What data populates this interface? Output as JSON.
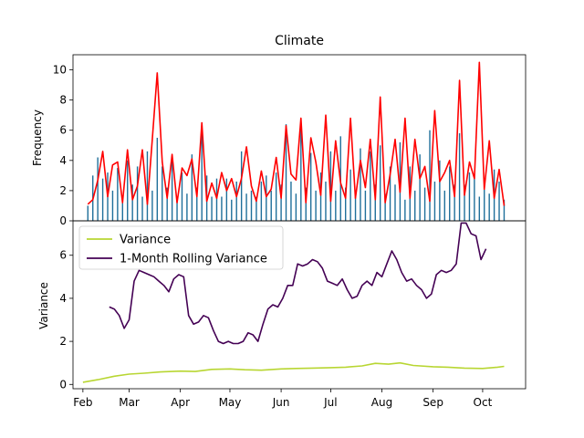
{
  "chart_data": [
    {
      "type": "bar+line",
      "title": "Climate",
      "xlabel": "",
      "ylabel": "Frequency",
      "ylim": [
        0,
        11
      ],
      "yticks": [
        0,
        2,
        4,
        6,
        8,
        10
      ],
      "grid": false,
      "bar_color": "#1f6f9a",
      "line_color": "#ff0000",
      "x": [
        "2023-02-04",
        "2023-02-07",
        "2023-02-10",
        "2023-02-13",
        "2023-02-16",
        "2023-02-19",
        "2023-02-22",
        "2023-02-25",
        "2023-02-28",
        "2023-03-03",
        "2023-03-06",
        "2023-03-09",
        "2023-03-12",
        "2023-03-15",
        "2023-03-18",
        "2023-03-21",
        "2023-03-24",
        "2023-03-27",
        "2023-03-30",
        "2023-04-02",
        "2023-04-05",
        "2023-04-08",
        "2023-04-11",
        "2023-04-14",
        "2023-04-17",
        "2023-04-20",
        "2023-04-23",
        "2023-04-26",
        "2023-04-29",
        "2023-05-02",
        "2023-05-05",
        "2023-05-08",
        "2023-05-11",
        "2023-05-14",
        "2023-05-17",
        "2023-05-20",
        "2023-05-23",
        "2023-05-26",
        "2023-05-29",
        "2023-06-01",
        "2023-06-04",
        "2023-06-07",
        "2023-06-10",
        "2023-06-13",
        "2023-06-16",
        "2023-06-19",
        "2023-06-22",
        "2023-06-25",
        "2023-06-28",
        "2023-07-01",
        "2023-07-04",
        "2023-07-07",
        "2023-07-10",
        "2023-07-13",
        "2023-07-16",
        "2023-07-19",
        "2023-07-22",
        "2023-07-25",
        "2023-07-28",
        "2023-07-31",
        "2023-08-03",
        "2023-08-06",
        "2023-08-09",
        "2023-08-12",
        "2023-08-15",
        "2023-08-18",
        "2023-08-21",
        "2023-08-24",
        "2023-08-27",
        "2023-08-30",
        "2023-09-02",
        "2023-09-05",
        "2023-09-08",
        "2023-09-11",
        "2023-09-14",
        "2023-09-17",
        "2023-09-20",
        "2023-09-23",
        "2023-09-26",
        "2023-09-29",
        "2023-10-02",
        "2023-10-05",
        "2023-10-08",
        "2023-10-11",
        "2023-10-14"
      ],
      "series": [
        {
          "kind": "bar",
          "values": [
            1.0,
            3.0,
            4.2,
            2.8,
            3.2,
            2.0,
            3.5,
            1.2,
            4.0,
            2.4,
            3.6,
            1.6,
            4.6,
            2.0,
            5.5,
            3.6,
            2.2,
            4.0,
            1.4,
            3.2,
            1.8,
            4.4,
            2.2,
            6.0,
            3.0,
            1.6,
            2.8,
            1.6,
            2.8,
            1.4,
            2.6,
            4.6,
            1.8,
            2.0,
            1.6,
            2.6,
            3.0,
            2.0,
            3.2,
            2.4,
            6.4,
            2.6,
            1.8,
            6.5,
            2.2,
            4.5,
            2.0,
            3.2,
            2.6,
            4.6,
            2.0,
            5.6,
            2.2,
            3.4,
            1.6,
            4.8,
            2.0,
            4.6,
            2.4,
            5.0,
            1.8,
            3.6,
            2.4,
            5.2,
            1.4,
            3.6,
            2.0,
            4.4,
            2.2,
            6.0,
            2.6,
            4.0,
            2.0,
            3.6,
            2.4,
            5.8,
            2.4,
            3.2,
            3.0,
            1.6,
            2.8,
            1.8,
            3.4,
            2.6,
            1.4
          ]
        },
        {
          "kind": "line",
          "values": [
            1.1,
            1.4,
            2.7,
            4.6,
            1.6,
            3.7,
            3.9,
            1.2,
            4.7,
            1.4,
            2.3,
            4.7,
            1.1,
            5.4,
            9.8,
            3.9,
            1.5,
            4.4,
            1.2,
            3.5,
            3.0,
            4.1,
            1.6,
            6.5,
            1.3,
            2.5,
            1.5,
            3.2,
            2.0,
            2.8,
            1.6,
            2.8,
            4.9,
            2.3,
            1.3,
            3.3,
            1.6,
            2.1,
            4.2,
            1.5,
            6.3,
            3.1,
            2.7,
            6.8,
            1.2,
            5.5,
            3.9,
            1.7,
            7.0,
            1.3,
            5.3,
            2.5,
            1.5,
            6.8,
            1.5,
            4.0,
            2.2,
            5.4,
            1.4,
            8.2,
            1.2,
            3.1,
            5.4,
            1.9,
            6.8,
            1.5,
            5.4,
            2.8,
            3.6,
            1.3,
            7.3,
            2.6,
            3.2,
            4.0,
            1.6,
            9.3,
            1.7,
            3.9,
            2.8,
            10.5,
            2.1,
            5.3,
            1.5,
            3.4,
            1.0
          ]
        }
      ]
    },
    {
      "type": "line",
      "title": "",
      "xlabel": "",
      "ylabel": "Variance",
      "ylim": [
        -0.2,
        7.6
      ],
      "yticks": [
        0,
        2,
        4,
        6
      ],
      "xticks": [
        "Feb",
        "Mar",
        "Apr",
        "May",
        "Jun",
        "Jul",
        "Aug",
        "Sep",
        "Oct"
      ],
      "xrange": [
        "2023-01-26",
        "2023-10-27"
      ],
      "grid": false,
      "legend": "upper-left",
      "series": [
        {
          "name": "Variance",
          "color": "#b8d632",
          "x": [
            "2023-02-01",
            "2023-02-10",
            "2023-02-20",
            "2023-03-01",
            "2023-03-10",
            "2023-03-20",
            "2023-04-01",
            "2023-04-10",
            "2023-04-20",
            "2023-05-01",
            "2023-05-10",
            "2023-05-20",
            "2023-06-01",
            "2023-06-10",
            "2023-06-20",
            "2023-07-01",
            "2023-07-10",
            "2023-07-20",
            "2023-07-28",
            "2023-08-05",
            "2023-08-12",
            "2023-08-20",
            "2023-09-01",
            "2023-09-10",
            "2023-09-20",
            "2023-10-01",
            "2023-10-10",
            "2023-10-14"
          ],
          "values": [
            0.1,
            0.22,
            0.38,
            0.48,
            0.52,
            0.58,
            0.62,
            0.6,
            0.7,
            0.72,
            0.68,
            0.66,
            0.72,
            0.74,
            0.76,
            0.78,
            0.8,
            0.86,
            0.98,
            0.94,
            1.0,
            0.88,
            0.82,
            0.8,
            0.76,
            0.74,
            0.8,
            0.84
          ]
        },
        {
          "name": "1-Month Rolling Variance",
          "color": "#440154",
          "x": [
            "2023-02-17",
            "2023-02-20",
            "2023-02-23",
            "2023-02-26",
            "2023-03-01",
            "2023-03-04",
            "2023-03-07",
            "2023-03-10",
            "2023-03-13",
            "2023-03-16",
            "2023-03-19",
            "2023-03-22",
            "2023-03-25",
            "2023-03-28",
            "2023-03-31",
            "2023-04-03",
            "2023-04-06",
            "2023-04-09",
            "2023-04-12",
            "2023-04-15",
            "2023-04-18",
            "2023-04-21",
            "2023-04-24",
            "2023-04-27",
            "2023-04-30",
            "2023-05-03",
            "2023-05-06",
            "2023-05-09",
            "2023-05-12",
            "2023-05-15",
            "2023-05-18",
            "2023-05-21",
            "2023-05-24",
            "2023-05-27",
            "2023-05-30",
            "2023-06-02",
            "2023-06-05",
            "2023-06-08",
            "2023-06-11",
            "2023-06-14",
            "2023-06-17",
            "2023-06-20",
            "2023-06-23",
            "2023-06-26",
            "2023-06-29",
            "2023-07-02",
            "2023-07-05",
            "2023-07-08",
            "2023-07-11",
            "2023-07-14",
            "2023-07-17",
            "2023-07-20",
            "2023-07-23",
            "2023-07-26",
            "2023-07-29",
            "2023-08-01",
            "2023-08-04",
            "2023-08-07",
            "2023-08-10",
            "2023-08-13",
            "2023-08-16",
            "2023-08-19",
            "2023-08-22",
            "2023-08-25",
            "2023-08-28",
            "2023-08-31",
            "2023-09-03",
            "2023-09-06",
            "2023-09-09",
            "2023-09-12",
            "2023-09-15",
            "2023-09-18",
            "2023-09-21",
            "2023-09-24",
            "2023-09-27",
            "2023-09-30",
            "2023-10-03"
          ],
          "values": [
            3.6,
            3.5,
            3.2,
            2.6,
            3.0,
            4.8,
            5.3,
            5.2,
            5.1,
            5.0,
            4.8,
            4.6,
            4.3,
            4.9,
            5.1,
            5.0,
            3.2,
            2.8,
            2.9,
            3.2,
            3.1,
            2.5,
            2.0,
            1.9,
            2.0,
            1.9,
            1.9,
            2.0,
            2.4,
            2.3,
            2.0,
            2.8,
            3.5,
            3.7,
            3.6,
            4.0,
            4.6,
            4.6,
            5.6,
            5.5,
            5.6,
            5.8,
            5.7,
            5.4,
            4.8,
            4.7,
            4.6,
            4.9,
            4.4,
            4.0,
            4.1,
            4.6,
            4.8,
            4.6,
            5.2,
            5.0,
            5.6,
            6.2,
            5.8,
            5.2,
            4.8,
            4.9,
            4.6,
            4.4,
            4.0,
            4.2,
            5.1,
            5.3,
            5.2,
            5.3,
            5.6,
            7.5,
            7.5,
            7.0,
            6.9,
            5.8,
            6.3
          ]
        }
      ]
    }
  ]
}
